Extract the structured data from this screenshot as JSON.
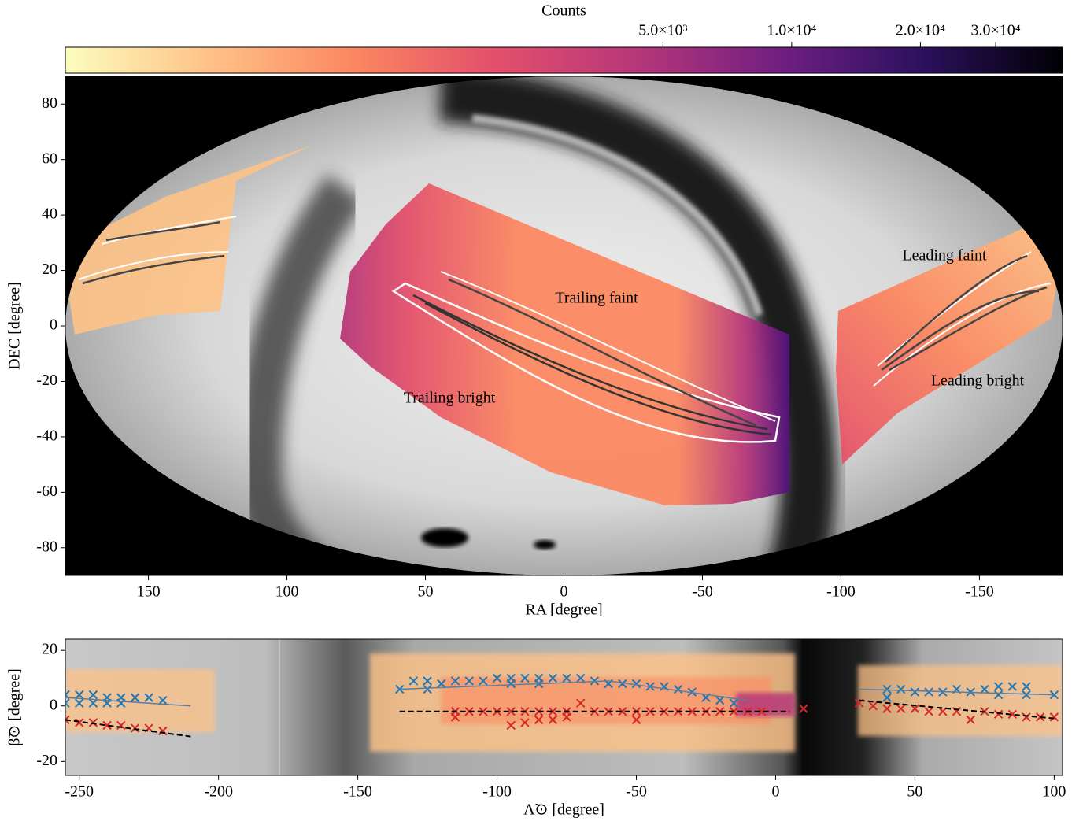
{
  "chart_data": [
    {
      "type": "colorbar",
      "label": "Counts",
      "log": true,
      "lim": [
        200,
        43000
      ],
      "ticks": [
        {
          "value": 5000,
          "label": "5.0×10³"
        },
        {
          "value": 10000,
          "label": "1.0×10⁴"
        },
        {
          "value": 20000,
          "label": "2.0×10⁴"
        },
        {
          "value": 30000,
          "label": "3.0×10⁴"
        }
      ],
      "colors": [
        "#fcfdbf",
        "#fec287",
        "#fc8961",
        "#e3506b",
        "#b73779",
        "#721f81",
        "#2c115f",
        "#000004"
      ]
    },
    {
      "type": "map",
      "projection": "mollweide",
      "xlabel": "RA [degree]",
      "ylabel": "DEC [degree]",
      "xlim": [
        180,
        -180
      ],
      "ylim": [
        -90,
        90
      ],
      "xticks": [
        150,
        100,
        50,
        0,
        -50,
        -100,
        -150
      ],
      "yticks": [
        -80,
        -60,
        -40,
        -20,
        0,
        20,
        40,
        60,
        80
      ],
      "annotations": [
        "Trailing faint",
        "Trailing bright",
        "Leading faint",
        "Leading bright"
      ]
    },
    {
      "type": "scatter",
      "xlabel": "Λ̃⊙ [degree]",
      "ylabel": "β̃⊙ [degree]",
      "xlim": [
        -255,
        103
      ],
      "ylim": [
        -25,
        24
      ],
      "xticks": [
        -250,
        -200,
        -150,
        -100,
        -50,
        0,
        50,
        100
      ],
      "yticks": [
        -20,
        0,
        20
      ],
      "series": [
        {
          "color": "#1f77b4",
          "marker": "x",
          "x": [
            -255,
            -255,
            -250,
            -250,
            -245,
            -245,
            -240,
            -240,
            -235,
            -235,
            -230,
            -225,
            -220,
            -135,
            -130,
            -125,
            -125,
            -120,
            -115,
            -110,
            -105,
            -100,
            -95,
            -95,
            -90,
            -85,
            -85,
            -80,
            -75,
            -70,
            -65,
            -60,
            -55,
            -50,
            -45,
            -40,
            -35,
            -30,
            -25,
            -20,
            -15,
            40,
            40,
            45,
            50,
            55,
            60,
            65,
            70,
            75,
            80,
            80,
            85,
            90,
            90,
            100
          ],
          "values": [
            4,
            1,
            4,
            1,
            4,
            1,
            3,
            1,
            3,
            1,
            3,
            3,
            2,
            6,
            9,
            9,
            6,
            8,
            9,
            9,
            9,
            10,
            10,
            8,
            10,
            10,
            8,
            10,
            10,
            10,
            9,
            8,
            8,
            8,
            7,
            7,
            6,
            5,
            3,
            2,
            1,
            6,
            3,
            6,
            5,
            5,
            5,
            6,
            5,
            6,
            7,
            4,
            7,
            7,
            4,
            4
          ]
        },
        {
          "color": "#d62728",
          "marker": "x",
          "x": [
            -255,
            -250,
            -245,
            -240,
            -235,
            -230,
            -225,
            -220,
            -115,
            -115,
            -110,
            -105,
            -100,
            -95,
            -95,
            -90,
            -90,
            -85,
            -85,
            -80,
            -80,
            -75,
            -75,
            -70,
            -65,
            -60,
            -55,
            -50,
            -50,
            -45,
            -40,
            -35,
            -30,
            -25,
            -20,
            -15,
            -10,
            -5,
            10,
            30,
            35,
            40,
            45,
            50,
            55,
            60,
            65,
            70,
            75,
            80,
            85,
            90,
            95,
            100
          ],
          "values": [
            -5,
            -6,
            -6,
            -7,
            -7,
            -8,
            -8,
            -9,
            -2,
            -4,
            -2,
            -2,
            -2,
            -2,
            -7,
            -2,
            -6,
            -2,
            -5,
            -2,
            -5,
            -2,
            -4,
            1,
            -2,
            -2,
            -2,
            -2,
            -5,
            -2,
            -2,
            -2,
            -2,
            -2,
            -2,
            -2,
            -2,
            -2,
            -1,
            1,
            0,
            -1,
            -1,
            -1,
            -2,
            -2,
            -2,
            -5,
            -2,
            -3,
            -3,
            -4,
            -4,
            -4
          ]
        },
        {
          "color": "#5b7fa0",
          "linestyle": "solid",
          "x": [
            -255,
            -210,
            null,
            -135,
            -60,
            -10,
            null,
            30,
            100
          ],
          "values": [
            3,
            0,
            null,
            6,
            9,
            2,
            null,
            6,
            4
          ]
        },
        {
          "color": "#000000",
          "linestyle": "dashed",
          "x": [
            -255,
            -210,
            null,
            -135,
            5,
            null,
            30,
            100
          ],
          "values": [
            -5,
            -11,
            null,
            -2,
            -2,
            null,
            2,
            -4.5
          ]
        }
      ]
    }
  ]
}
